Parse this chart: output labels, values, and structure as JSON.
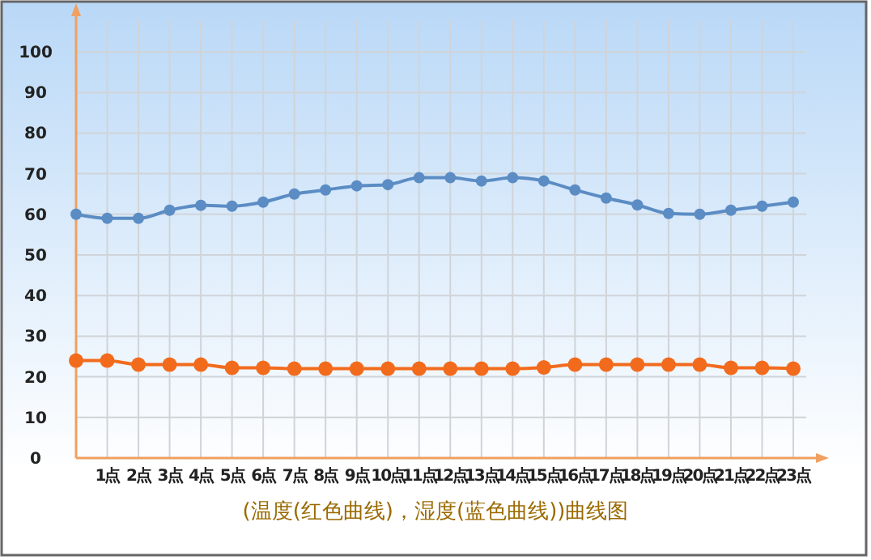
{
  "chart_data": {
    "type": "line",
    "title": "(温度(红色曲线)，湿度(蓝色曲线))曲线图",
    "categories": [
      null,
      "1点",
      "2点",
      "3点",
      "4点",
      "5点",
      "6点",
      "7点",
      "8点",
      "9点",
      "10点",
      "11点",
      "12点",
      "13点",
      "14点",
      "15点",
      "16点",
      "17点",
      "18点",
      "19点",
      "20点",
      "21点",
      "22点",
      "23点"
    ],
    "series": [
      {
        "color": "#5b8cc4",
        "values": [
          60,
          59,
          59,
          61,
          62.2,
          62,
          63,
          65,
          66,
          67,
          67.3,
          69,
          69,
          68.2,
          69,
          68.2,
          66,
          64,
          62.3,
          60.2,
          60,
          61,
          62,
          63
        ]
      },
      {
        "color": "#f26b1d",
        "values": [
          24,
          24,
          23,
          23,
          23,
          22.2,
          22.2,
          22,
          22,
          22,
          22,
          22,
          22,
          22,
          22,
          22.3,
          23,
          23,
          23,
          23,
          23,
          22.2,
          22.2,
          22
        ]
      }
    ],
    "ylim": [
      0,
      100
    ],
    "yticks": [
      0,
      10,
      20,
      30,
      40,
      50,
      60,
      70,
      80,
      90,
      100
    ],
    "grid": true,
    "marker": "circle"
  }
}
